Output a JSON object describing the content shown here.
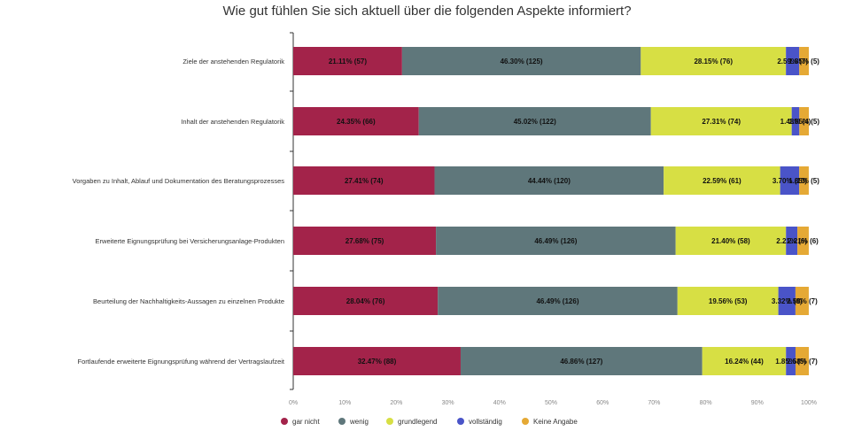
{
  "chart_data": {
    "type": "bar",
    "orientation": "horizontal",
    "stacked": true,
    "title": "Wie gut fühlen Sie sich aktuell über die folgenden Aspekte informiert?",
    "categories": [
      "Ziele der anstehenden Regulatorik",
      "Inhalt der anstehenden Regulatorik",
      "Vorgaben zu Inhalt, Ablauf und Dokumentation des Beratungsprozesses",
      "Erweiterte Eignungsprüfung bei Versicherungsanlage-Produkten",
      "Beurteilung der Nachhaltigkeits-Aussagen zu einzelnen Produkte",
      "Fortlaufende erweiterte Eignungsprüfung während der Vertragslaufzeit"
    ],
    "xlim": [
      0,
      100
    ],
    "xticks": [
      "0%",
      "10%",
      "20%",
      "30%",
      "40%",
      "50%",
      "60%",
      "70%",
      "80%",
      "90%",
      "100%"
    ],
    "legend_position": "bottom-left",
    "series": [
      {
        "name": "gar nicht",
        "color": "#a3234a",
        "values": [
          21.11,
          24.35,
          27.41,
          27.68,
          28.04,
          32.47
        ],
        "labels": [
          "21.11% (57)",
          "24.35% (66)",
          "27.41% (74)",
          "27.68% (75)",
          "28.04% (76)",
          "32.47% (88)"
        ]
      },
      {
        "name": "wenig",
        "color": "#5f777b",
        "values": [
          46.3,
          45.02,
          44.44,
          46.49,
          46.49,
          46.86
        ],
        "labels": [
          "46.30% (125)",
          "45.02% (122)",
          "44.44% (120)",
          "46.49% (126)",
          "46.49% (126)",
          "46.86% (127)"
        ]
      },
      {
        "name": "grundlegend",
        "color": "#d7df44",
        "values": [
          28.15,
          27.31,
          22.59,
          21.4,
          19.56,
          16.24
        ],
        "labels": [
          "28.15% (76)",
          "27.31% (74)",
          "22.59% (61)",
          "21.40% (58)",
          "19.56% (53)",
          "16.24% (44)"
        ]
      },
      {
        "name": "vollständig",
        "color": "#4a54c8",
        "values": [
          2.59,
          1.48,
          3.7,
          2.21,
          3.32,
          1.85
        ],
        "labels": [
          "2.59% (7)",
          "1.48% (4)",
          "3.70% (10)",
          "2.21% (6)",
          "3.32% (9)",
          "1.85% (5)"
        ]
      },
      {
        "name": "Keine Angabe",
        "color": "#e5a935",
        "values": [
          1.85,
          1.85,
          1.85,
          2.21,
          2.58,
          2.58
        ],
        "labels": [
          "1.85% (5)",
          "1.85% (5)",
          "1.85% (5)",
          "2.21% (6)",
          "2.58% (7)",
          "2.58% (7)"
        ]
      }
    ]
  }
}
